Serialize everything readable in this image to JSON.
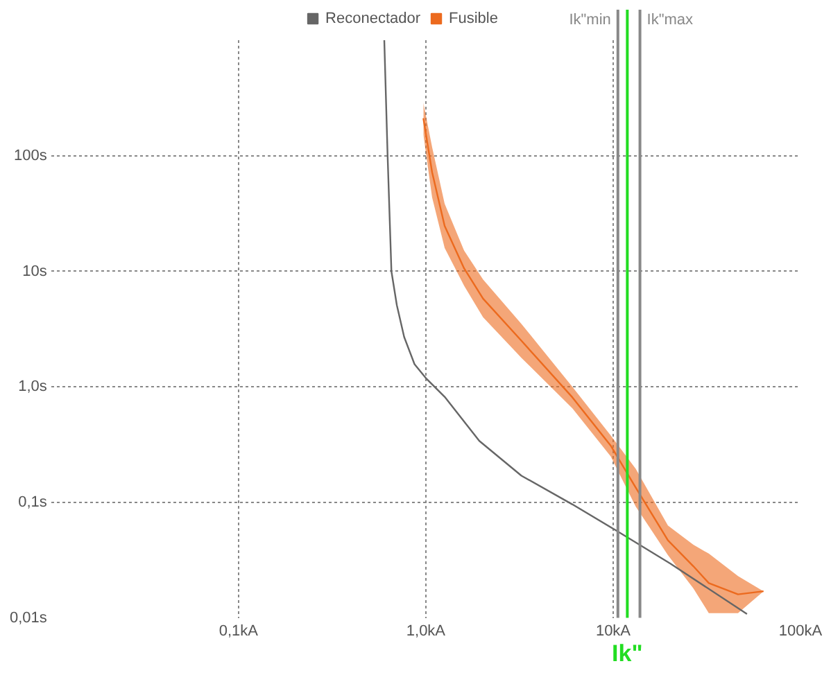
{
  "chart_data": {
    "type": "line",
    "x": [
      0.6,
      0.625,
      0.655,
      0.7,
      0.766,
      0.87,
      1.0,
      1.26,
      1.93,
      3.24,
      6.06,
      10.2,
      20.2,
      51.8
    ],
    "series": [
      {
        "name": "Reconectador",
        "color": "#666666",
        "values": [
          1000,
          100,
          10,
          5.1,
          2.7,
          1.57,
          1.19,
          0.82,
          0.34,
          0.17,
          0.096,
          0.058,
          0.0295,
          0.0108
        ]
      },
      {
        "name": "Fusible",
        "type": "line",
        "color": "#ec6a1e",
        "x": [
          0.97,
          1.08,
          1.26,
          1.6,
          2.02,
          3.24,
          6.06,
          9.7,
          13.2,
          19.6,
          26.8,
          32.4,
          46.4,
          63.5
        ],
        "values": [
          211,
          72,
          24.7,
          10.6,
          5.8,
          2.5,
          0.81,
          0.31,
          0.134,
          0.047,
          0.028,
          0.02,
          0.016,
          0.017
        ],
        "upper": [
          288,
          119,
          38.4,
          15.1,
          8.5,
          3.5,
          1.0,
          0.38,
          0.195,
          0.063,
          0.043,
          0.036,
          0.023,
          0.017
        ],
        "lower": [
          153,
          43.6,
          15.9,
          7.5,
          4.0,
          1.78,
          0.65,
          0.25,
          0.092,
          0.035,
          0.018,
          0.011,
          0.011,
          0.017
        ]
      }
    ],
    "log": "xy",
    "xlim": [
      0.01,
      100
    ],
    "ylim": [
      0.01,
      1000
    ],
    "xticks": [
      {
        "value": 0.1,
        "label": "0,1kA"
      },
      {
        "value": 1,
        "label": "1,0kA"
      },
      {
        "value": 10,
        "label": "10kA"
      },
      {
        "value": 100,
        "label": "100kA"
      }
    ],
    "yticks": [
      {
        "value": 0.01,
        "label": "0,01s"
      },
      {
        "value": 0.1,
        "label": "0,1s"
      },
      {
        "value": 1,
        "label": "1,0s"
      },
      {
        "value": 10,
        "label": "10s"
      },
      {
        "value": 100,
        "label": "100s"
      }
    ],
    "ref_lines": [
      {
        "axis": "x",
        "value": 10.6,
        "label": "Ik\"min",
        "color": "#888888"
      },
      {
        "axis": "x",
        "value": 11.9,
        "label": "Ik\"",
        "color": "#22dd22"
      },
      {
        "axis": "x",
        "value": 13.9,
        "label": "Ik\"max",
        "color": "#888888"
      }
    ],
    "grid": true,
    "legend": "top",
    "marker": "none"
  }
}
